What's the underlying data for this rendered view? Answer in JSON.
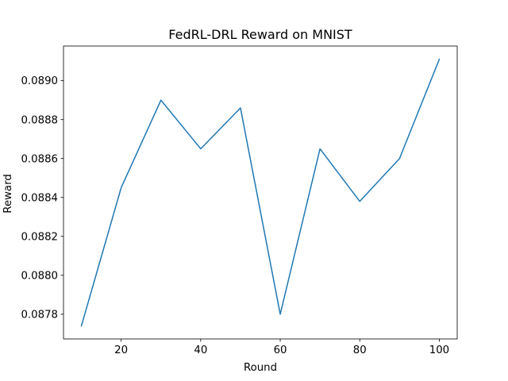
{
  "chart_data": {
    "type": "line",
    "title": "FedRL-DRL Reward on MNIST",
    "xlabel": "Round",
    "ylabel": "Reward",
    "x": [
      10,
      20,
      30,
      40,
      50,
      60,
      70,
      80,
      90,
      100
    ],
    "series": [
      {
        "values": [
          0.08774,
          0.08845,
          0.0889,
          0.08865,
          0.08886,
          0.0878,
          0.08865,
          0.08838,
          0.0886,
          0.08911
        ],
        "color": "#1f77b4"
      }
    ],
    "xlim": [
      5.5,
      104.5
    ],
    "ylim": [
      0.087673,
      0.089178
    ],
    "xticks": [
      20,
      40,
      60,
      80,
      100
    ],
    "xtick_labels": [
      "20",
      "40",
      "60",
      "80",
      "100"
    ],
    "yticks": [
      0.0878,
      0.088,
      0.0882,
      0.0884,
      0.0886,
      0.0888,
      0.089
    ],
    "ytick_labels": [
      "0.0878",
      "0.0880",
      "0.0882",
      "0.0884",
      "0.0886",
      "0.0888",
      "0.0890"
    ],
    "grid": false,
    "legend": "none"
  }
}
